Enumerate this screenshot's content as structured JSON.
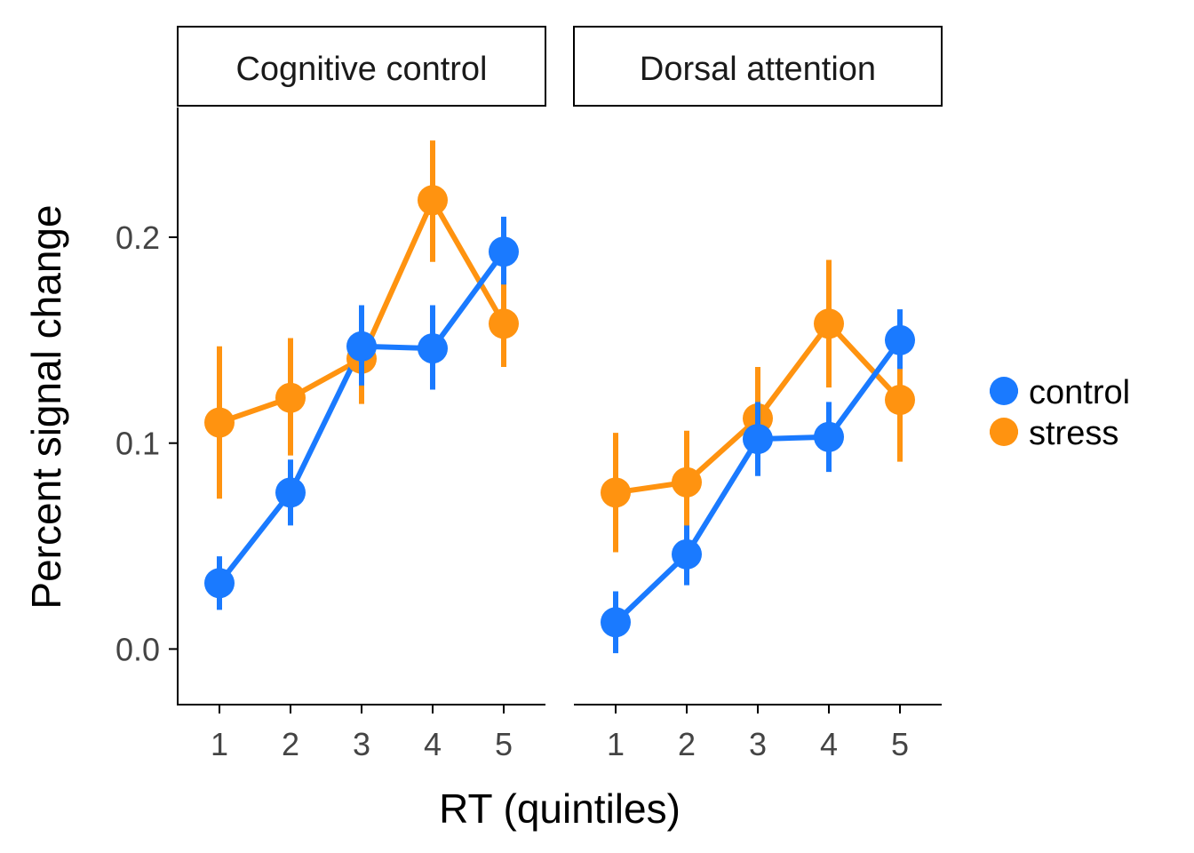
{
  "colors": {
    "control": "#1a7aff",
    "stress": "#ff9310"
  },
  "chart_data": {
    "type": "line",
    "x_label": "RT (quintiles)",
    "y_label": "Percent signal change",
    "x_ticks": [
      "1",
      "2",
      "3",
      "4",
      "5"
    ],
    "y_ticks": [
      "0.0",
      "0.1",
      "0.2"
    ],
    "y_tick_values": [
      0.0,
      0.1,
      0.2
    ],
    "ylim": [
      -0.027,
      0.263
    ],
    "x": [
      1,
      2,
      3,
      4,
      5
    ],
    "legend": [
      "control",
      "stress"
    ],
    "legend_position": "right",
    "panels": [
      {
        "title": "Cognitive control",
        "series": [
          {
            "name": "control",
            "values": [
              0.032,
              0.076,
              0.147,
              0.146,
              0.193
            ],
            "lower": [
              0.019,
              0.06,
              0.128,
              0.126,
              0.177
            ],
            "upper": [
              0.045,
              0.092,
              0.167,
              0.167,
              0.21
            ]
          },
          {
            "name": "stress",
            "values": [
              0.11,
              0.122,
              0.141,
              0.218,
              0.158
            ],
            "lower": [
              0.073,
              0.094,
              0.119,
              0.188,
              0.137
            ],
            "upper": [
              0.147,
              0.151,
              0.164,
              0.247,
              0.179
            ]
          }
        ]
      },
      {
        "title": "Dorsal attention",
        "series": [
          {
            "name": "control",
            "values": [
              0.013,
              0.046,
              0.102,
              0.103,
              0.15
            ],
            "lower": [
              -0.002,
              0.031,
              0.084,
              0.086,
              0.136
            ],
            "upper": [
              0.028,
              0.06,
              0.12,
              0.12,
              0.165
            ]
          },
          {
            "name": "stress",
            "values": [
              0.076,
              0.081,
              0.112,
              0.158,
              0.121
            ],
            "lower": [
              0.047,
              0.057,
              0.087,
              0.127,
              0.091
            ],
            "upper": [
              0.105,
              0.106,
              0.137,
              0.189,
              0.15
            ]
          }
        ]
      }
    ]
  }
}
